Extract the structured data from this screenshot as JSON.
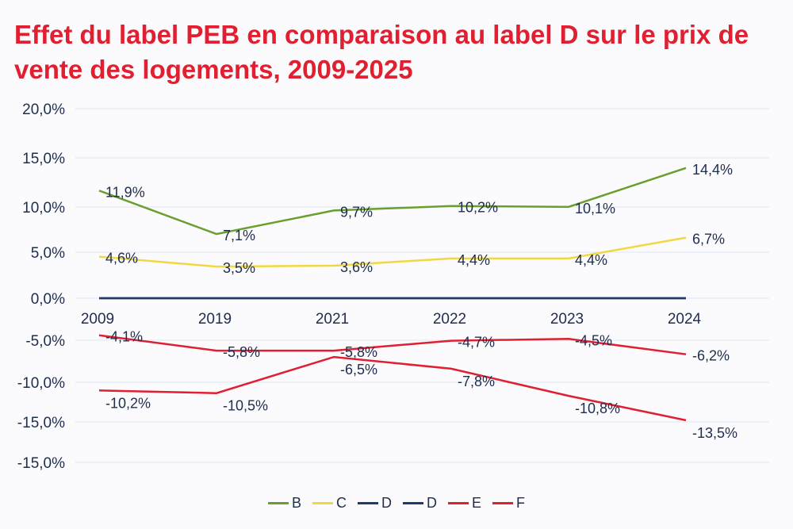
{
  "chart_data": {
    "type": "line",
    "title": "Effet du label PEB en comparaison au label D sur le prix de vente des logements, 2009-2025",
    "xlabel": "",
    "ylabel": "",
    "categories": [
      "2009",
      "2019",
      "2021",
      "2022",
      "2023",
      "2024"
    ],
    "y_tick_labels": [
      "20,0%",
      "15,0%",
      "10,0%",
      "5,0%",
      "0,0%",
      "-5,0%",
      "-10,0%",
      "-15,0%",
      "-15,0%"
    ],
    "ylim": [
      -15,
      20
    ],
    "grid": true,
    "legend_position": "bottom",
    "series": [
      {
        "name": "B",
        "color": "#6a9f2e",
        "values": [
          11.9,
          7.1,
          9.7,
          10.2,
          10.1,
          14.4
        ],
        "labels": [
          "11,9%",
          "7,1%",
          "9,7%",
          "10,2%",
          "10,1%",
          "14,4%"
        ]
      },
      {
        "name": "C",
        "color": "#f2d840",
        "values": [
          4.6,
          3.5,
          3.6,
          4.4,
          4.4,
          6.7
        ],
        "labels": [
          "4,6%",
          "3,5%",
          "3,6%",
          "4,4%",
          "4,4%",
          "6,7%"
        ]
      },
      {
        "name": "D",
        "color": "#1d3a6e",
        "values": [
          0,
          0,
          0,
          0,
          0,
          0
        ],
        "labels": []
      },
      {
        "name": "D",
        "color": "#1d3a6e",
        "values": [
          0,
          0,
          0,
          0,
          0,
          0
        ],
        "labels": []
      },
      {
        "name": "E",
        "color": "#e01f30",
        "values": [
          -4.1,
          -5.8,
          -5.8,
          -4.7,
          -4.5,
          -6.2
        ],
        "labels": [
          "-4,1%",
          "-5,8%",
          "-5,8%",
          "-4,7%",
          "-4,5%",
          "-6,2%"
        ]
      },
      {
        "name": "F",
        "color": "#e01f30",
        "values": [
          -10.2,
          -10.5,
          -6.5,
          -7.8,
          -10.8,
          -13.5
        ],
        "labels": [
          "-10,2%",
          "-10,5%",
          "-6,5%",
          "-7,8%",
          "-10,8%",
          "-13,5%"
        ]
      }
    ]
  }
}
